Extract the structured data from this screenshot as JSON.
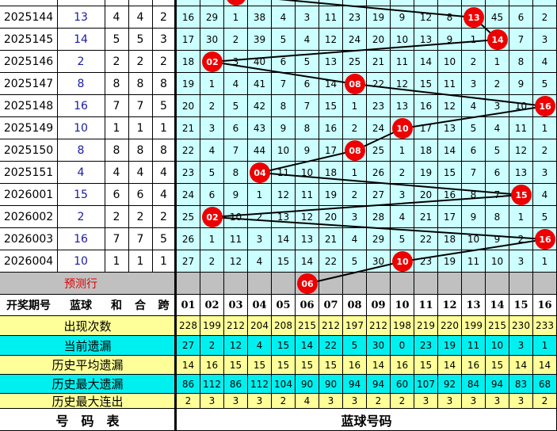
{
  "colors": {
    "grid_bg": "#ccffff",
    "ball": "#ee0000",
    "stat_yellow": "#ffff99",
    "stat_cyan": "#00f0f0",
    "predict_bg": "#c0c0c0",
    "blue_text": "#1a1aa6"
  },
  "rows": [
    {
      "period": "2025144",
      "blue": "13",
      "he": "4",
      "hehe": "4",
      "kua": "2",
      "cells": [
        "16",
        "29",
        "1",
        "38",
        "4",
        "3",
        "11",
        "23",
        "19",
        "9",
        "12",
        "8",
        "13",
        "45",
        "6",
        "2"
      ],
      "ball_col": 13
    },
    {
      "period": "2025145",
      "blue": "14",
      "he": "5",
      "hehe": "5",
      "kua": "3",
      "cells": [
        "17",
        "30",
        "2",
        "39",
        "5",
        "4",
        "12",
        "24",
        "20",
        "10",
        "13",
        "9",
        "1",
        "14",
        "7",
        "3"
      ],
      "ball_col": 14
    },
    {
      "period": "2025146",
      "blue": "2",
      "he": "2",
      "hehe": "2",
      "kua": "2",
      "cells": [
        "18",
        "02",
        "3",
        "40",
        "6",
        "5",
        "13",
        "25",
        "21",
        "11",
        "14",
        "10",
        "2",
        "1",
        "8",
        "4"
      ],
      "ball_col": 2
    },
    {
      "period": "2025147",
      "blue": "8",
      "he": "8",
      "hehe": "8",
      "kua": "8",
      "cells": [
        "19",
        "1",
        "4",
        "41",
        "7",
        "6",
        "14",
        "08",
        "22",
        "12",
        "15",
        "11",
        "3",
        "2",
        "9",
        "5"
      ],
      "ball_col": 8
    },
    {
      "period": "2025148",
      "blue": "16",
      "he": "7",
      "hehe": "7",
      "kua": "5",
      "cells": [
        "20",
        "2",
        "5",
        "42",
        "8",
        "7",
        "15",
        "1",
        "23",
        "13",
        "16",
        "12",
        "4",
        "3",
        "10",
        "16"
      ],
      "ball_col": 16
    },
    {
      "period": "2025149",
      "blue": "10",
      "he": "1",
      "hehe": "1",
      "kua": "1",
      "cells": [
        "21",
        "3",
        "6",
        "43",
        "9",
        "8",
        "16",
        "2",
        "24",
        "10",
        "17",
        "13",
        "5",
        "4",
        "11",
        "1"
      ],
      "ball_col": 10
    },
    {
      "period": "2025150",
      "blue": "8",
      "he": "8",
      "hehe": "8",
      "kua": "8",
      "cells": [
        "22",
        "4",
        "7",
        "44",
        "10",
        "9",
        "17",
        "08",
        "25",
        "1",
        "18",
        "14",
        "6",
        "5",
        "12",
        "2"
      ],
      "ball_col": 8
    },
    {
      "period": "2025151",
      "blue": "4",
      "he": "4",
      "hehe": "4",
      "kua": "4",
      "cells": [
        "23",
        "5",
        "8",
        "04",
        "11",
        "10",
        "18",
        "1",
        "26",
        "2",
        "19",
        "15",
        "7",
        "6",
        "13",
        "3"
      ],
      "ball_col": 4
    },
    {
      "period": "2026001",
      "blue": "15",
      "he": "6",
      "hehe": "6",
      "kua": "4",
      "cells": [
        "24",
        "6",
        "9",
        "1",
        "12",
        "11",
        "19",
        "2",
        "27",
        "3",
        "20",
        "16",
        "8",
        "7",
        "15",
        "4"
      ],
      "ball_col": 15
    },
    {
      "period": "2026002",
      "blue": "2",
      "he": "2",
      "hehe": "2",
      "kua": "2",
      "cells": [
        "25",
        "02",
        "10",
        "2",
        "13",
        "12",
        "20",
        "3",
        "28",
        "4",
        "21",
        "17",
        "9",
        "8",
        "1",
        "5"
      ],
      "ball_col": 2
    },
    {
      "period": "2026003",
      "blue": "16",
      "he": "7",
      "hehe": "7",
      "kua": "5",
      "cells": [
        "26",
        "1",
        "11",
        "3",
        "14",
        "13",
        "21",
        "4",
        "29",
        "5",
        "22",
        "18",
        "10",
        "9",
        "2",
        "16"
      ],
      "ball_col": 16
    },
    {
      "period": "2026004",
      "blue": "10",
      "he": "1",
      "hehe": "1",
      "kua": "1",
      "cells": [
        "27",
        "2",
        "12",
        "4",
        "15",
        "14",
        "22",
        "5",
        "30",
        "10",
        "23",
        "19",
        "11",
        "10",
        "3",
        "1"
      ],
      "ball_col": 10
    }
  ],
  "predict": {
    "label": "预测行",
    "ball": "06",
    "ball_col": 6
  },
  "header": {
    "period": "开奖期号",
    "blue": "蓝球",
    "he": "和",
    "hehe": "合",
    "kua": "跨",
    "numbers": [
      "01",
      "02",
      "03",
      "04",
      "05",
      "06",
      "07",
      "08",
      "09",
      "10",
      "11",
      "12",
      "13",
      "14",
      "15",
      "16"
    ]
  },
  "stats": [
    {
      "label": "出现次数",
      "color": "yellow",
      "values": [
        "228",
        "199",
        "212",
        "204",
        "208",
        "215",
        "212",
        "197",
        "212",
        "198",
        "219",
        "220",
        "199",
        "215",
        "230",
        "233"
      ]
    },
    {
      "label": "当前遗漏",
      "color": "cyan",
      "values": [
        "27",
        "2",
        "12",
        "4",
        "15",
        "14",
        "22",
        "5",
        "30",
        "0",
        "23",
        "19",
        "11",
        "10",
        "3",
        "1"
      ]
    },
    {
      "label": "历史平均遗漏",
      "color": "yellow",
      "values": [
        "14",
        "16",
        "15",
        "15",
        "15",
        "15",
        "15",
        "16",
        "14",
        "16",
        "15",
        "14",
        "16",
        "15",
        "14",
        "14"
      ]
    },
    {
      "label": "历史最大遗漏",
      "color": "cyan",
      "values": [
        "86",
        "112",
        "86",
        "112",
        "104",
        "90",
        "90",
        "94",
        "94",
        "60",
        "107",
        "92",
        "84",
        "94",
        "83",
        "68"
      ]
    },
    {
      "label": "历史最大连出",
      "color": "yellow",
      "values": [
        "2",
        "3",
        "3",
        "3",
        "2",
        "4",
        "3",
        "3",
        "2",
        "2",
        "3",
        "3",
        "3",
        "3",
        "3",
        "2"
      ]
    }
  ],
  "footer": {
    "left": "号　码　表",
    "right": "蓝球号码"
  }
}
